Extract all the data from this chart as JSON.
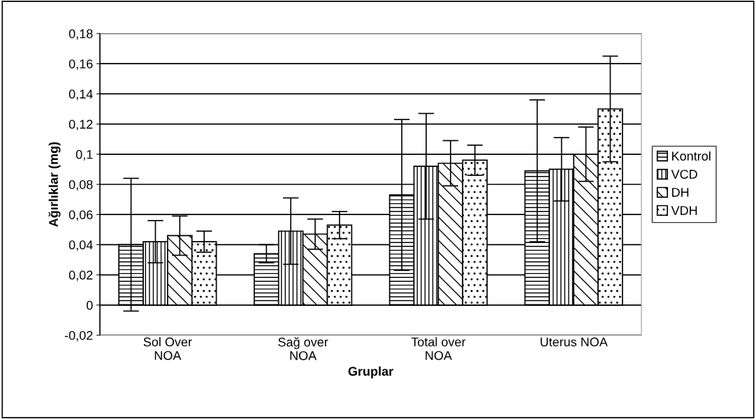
{
  "chart_data": {
    "type": "bar",
    "xlabel": "Gruplar",
    "ylabel": "Ağırlıklar (mg)",
    "categories": [
      "Sol Over\nNOA",
      "Sağ over\nNOA",
      "Total over\nNOA",
      "Uterus NOA"
    ],
    "series": [
      {
        "name": "Kontrol",
        "values": [
          0.04,
          0.034,
          0.073,
          0.089
        ],
        "errors": [
          0.044,
          0.006,
          0.05,
          0.047
        ]
      },
      {
        "name": "VCD",
        "values": [
          0.042,
          0.049,
          0.092,
          0.09
        ],
        "errors": [
          0.014,
          0.022,
          0.035,
          0.021
        ]
      },
      {
        "name": "DH",
        "values": [
          0.046,
          0.047,
          0.094,
          0.1
        ],
        "errors": [
          0.013,
          0.01,
          0.015,
          0.018
        ]
      },
      {
        "name": "VDH",
        "values": [
          0.042,
          0.053,
          0.096,
          0.13
        ],
        "errors": [
          0.007,
          0.009,
          0.01,
          0.035
        ]
      }
    ],
    "ylim": [
      -0.02,
      0.18
    ],
    "yticks": [
      {
        "value": -0.02,
        "label": "-0,02"
      },
      0,
      {
        "value": 0.02,
        "label": "0,02"
      },
      {
        "value": 0.04,
        "label": "0,04"
      },
      {
        "value": 0.06,
        "label": "0,06"
      },
      {
        "value": 0.08,
        "label": "0,08"
      },
      {
        "value": 0.1,
        "label": "0,1"
      },
      {
        "value": 0.12,
        "label": "0,12"
      },
      {
        "value": 0.14,
        "label": "0,14"
      },
      {
        "value": 0.16,
        "label": "0,16"
      },
      {
        "value": 0.18,
        "label": "0,18"
      }
    ],
    "grid": "y",
    "legend": "right"
  }
}
